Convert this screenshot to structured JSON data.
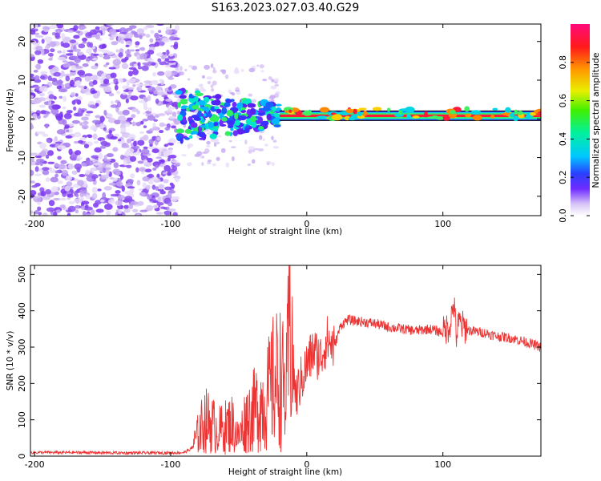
{
  "figure": {
    "title": "S163.2023.027.03.40.G29"
  },
  "chart_data": [
    {
      "type": "heatmap",
      "title": "",
      "xlabel": "Height of straight line (km)",
      "ylabel": "Frequency (Hz)",
      "xlim": [
        -203,
        172
      ],
      "ylim": [
        -25,
        24.5
      ],
      "xticks": [
        -200,
        -100,
        0,
        100
      ],
      "xtick_labels": [
        "-200",
        "-100",
        "0",
        "100"
      ],
      "yticks": [
        -20,
        -10,
        0,
        10,
        20
      ],
      "ytick_labels": [
        "-20",
        "-10",
        "0",
        "10",
        "20"
      ],
      "grid": false,
      "colorbar": {
        "label": "Normalized spectral amplitude",
        "range": [
          0,
          1
        ],
        "ticks": [
          0.0,
          0.2,
          0.4,
          0.6,
          0.8
        ],
        "tick_labels": [
          "0.0",
          "0.2",
          "0.4",
          "0.6",
          "0.8"
        ]
      },
      "features": {
        "noise_region_x": [
          -203,
          -95
        ],
        "burst_region_x": [
          -95,
          -20
        ],
        "carrier_line_x": [
          -20,
          172
        ],
        "carrier_freq_hz": 0.8
      }
    },
    {
      "type": "line",
      "title": "",
      "xlabel": "Height of straight line (km)",
      "ylabel": "SNR (10 * v/v)",
      "xlim": [
        -203,
        172
      ],
      "ylim": [
        0,
        525
      ],
      "xticks": [
        -200,
        -100,
        0,
        100
      ],
      "xtick_labels": [
        "-200",
        "-100",
        "0",
        "100"
      ],
      "yticks": [
        0,
        100,
        200,
        300,
        400,
        500
      ],
      "ytick_labels": [
        "0",
        "100",
        "200",
        "300",
        "400",
        "500"
      ],
      "grid": false,
      "color": "#ee3333",
      "x": [
        -203,
        -180,
        -160,
        -140,
        -120,
        -100,
        -90,
        -85,
        -80,
        -75,
        -70,
        -65,
        -60,
        -55,
        -50,
        -45,
        -40,
        -35,
        -30,
        -25,
        -20,
        -15,
        -12,
        -10,
        -8,
        -5,
        0,
        5,
        10,
        15,
        20,
        25,
        30,
        40,
        50,
        60,
        70,
        80,
        90,
        100,
        105,
        108,
        110,
        112,
        115,
        120,
        130,
        140,
        150,
        160,
        172
      ],
      "y": [
        10,
        10,
        10,
        9,
        9,
        9,
        10,
        20,
        60,
        100,
        90,
        70,
        80,
        90,
        50,
        100,
        120,
        140,
        150,
        200,
        220,
        170,
        400,
        250,
        160,
        200,
        250,
        290,
        270,
        320,
        300,
        360,
        375,
        370,
        365,
        355,
        350,
        345,
        350,
        340,
        360,
        420,
        330,
        370,
        355,
        345,
        340,
        330,
        325,
        315,
        300
      ]
    }
  ]
}
